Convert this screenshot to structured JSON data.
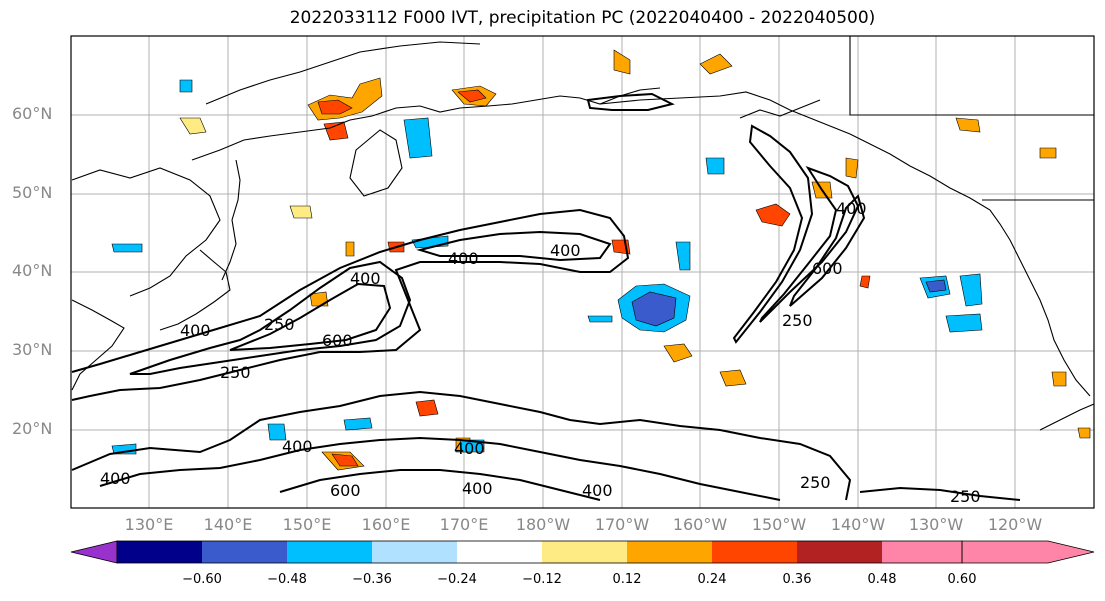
{
  "title": "2022033112 F000 IVT, precipitation PC (2022040400 - 2022040500)",
  "lat_labels": [
    "60°N",
    "50°N",
    "40°N",
    "30°N",
    "20°N"
  ],
  "lon_labels": [
    "130°E",
    "140°E",
    "150°E",
    "160°E",
    "170°E",
    "180°W",
    "170°W",
    "160°W",
    "150°W",
    "140°W",
    "130°W",
    "120°W"
  ],
  "contour_labels": [
    "400",
    "400",
    "400",
    "250",
    "400",
    "600",
    "250",
    "400",
    "600",
    "250",
    "400",
    "400",
    "400",
    "600",
    "400",
    "250",
    "250",
    "400"
  ],
  "colorbar": {
    "labels": [
      "−0.60",
      "−0.48",
      "−0.36",
      "−0.24",
      "−0.12",
      "0.12",
      "0.24",
      "0.36",
      "0.48",
      "0.60"
    ],
    "colors": [
      "#9932CC",
      "#00008B",
      "#3A5BCC",
      "#00BFFF",
      "#B0E2FF",
      "#FFFFFF",
      "#FFEB84",
      "#FFA500",
      "#FF4500",
      "#B22222",
      "#FF85A8"
    ]
  },
  "precip_colors": {
    "pos1": "#FFEB84",
    "pos2": "#FFA500",
    "pos3": "#FF4500",
    "neg1": "#B0E2FF",
    "neg2": "#00BFFF",
    "neg3": "#3A5BCC"
  }
}
